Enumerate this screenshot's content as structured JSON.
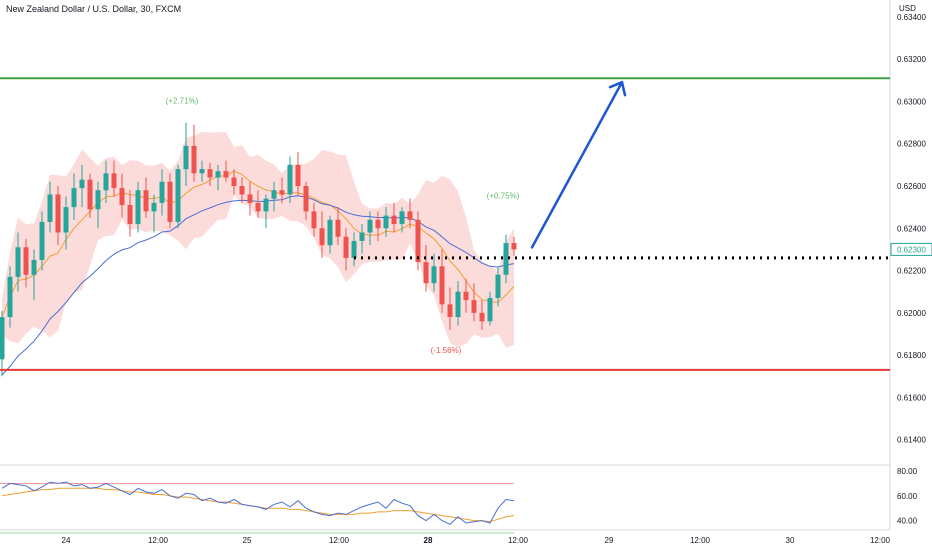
{
  "header": {
    "title": "New Zealand Dollar / U.S. Dollar, 30, FXCM",
    "currency": "USD"
  },
  "chart_data": {
    "type": "candlestick",
    "symbol": "NZDUSD",
    "title": "New Zealand Dollar / U.S. Dollar, 30, FXCM",
    "y_axis": {
      "ticks": [
        "0.63400",
        "0.63200",
        "0.63000",
        "0.62800",
        "0.62600",
        "0.62400",
        "0.62200",
        "0.62000",
        "0.61800",
        "0.61600",
        "0.61400"
      ],
      "ylim": [
        0.6128,
        0.6348
      ]
    },
    "x_axis": {
      "ticks": [
        {
          "label": "24",
          "bold": false
        },
        {
          "label": "12:00",
          "bold": false
        },
        {
          "label": "25",
          "bold": false
        },
        {
          "label": "12:00",
          "bold": false
        },
        {
          "label": "28",
          "bold": true
        },
        {
          "label": "12:00",
          "bold": false
        },
        {
          "label": "29",
          "bold": false
        },
        {
          "label": "12:00",
          "bold": false
        },
        {
          "label": "30",
          "bold": false
        },
        {
          "label": "12:00",
          "bold": false
        }
      ]
    },
    "current_price": {
      "value": 0.623,
      "label": "0.62300",
      "color": "#26a69a"
    },
    "resistance": {
      "value": 0.6311,
      "color": "#43a047"
    },
    "support": {
      "value": 0.6173,
      "color": "#e53935"
    },
    "dotted_level": {
      "value": 0.6226,
      "color": "#000000"
    },
    "annotations": [
      {
        "text": "(+2.71%)",
        "color": "#66bb6a",
        "price": 0.6299
      },
      {
        "text": "(+0.75%)",
        "color": "#66bb6a",
        "price": 0.6254
      },
      {
        "text": "(-1.56%)",
        "color": "#ef5350",
        "price": 0.6181
      }
    ],
    "projection_arrow": {
      "color": "#1e56d6",
      "from": 0.623,
      "to": 0.6311
    },
    "colors": {
      "up": "#26a69a",
      "down": "#ef5350",
      "bands_fill": "#fbd5d5",
      "ma_slow": "#4a6fd6",
      "ma_fast": "#f0a030"
    },
    "candles": [
      [
        0.6178,
        0.6201,
        0.617,
        0.6198
      ],
      [
        0.6198,
        0.6222,
        0.6193,
        0.6217
      ],
      [
        0.6217,
        0.6238,
        0.621,
        0.6231
      ],
      [
        0.6231,
        0.6235,
        0.6212,
        0.6218
      ],
      [
        0.6218,
        0.623,
        0.6206,
        0.6225
      ],
      [
        0.6225,
        0.6248,
        0.622,
        0.6243
      ],
      [
        0.6243,
        0.6262,
        0.6238,
        0.6256
      ],
      [
        0.6256,
        0.626,
        0.6232,
        0.6238
      ],
      [
        0.6238,
        0.6255,
        0.623,
        0.625
      ],
      [
        0.625,
        0.6266,
        0.6244,
        0.6259
      ],
      [
        0.6259,
        0.627,
        0.625,
        0.6263
      ],
      [
        0.6263,
        0.6266,
        0.6245,
        0.6249
      ],
      [
        0.6249,
        0.6262,
        0.624,
        0.6258
      ],
      [
        0.6258,
        0.6272,
        0.6252,
        0.6266
      ],
      [
        0.6266,
        0.6272,
        0.6255,
        0.6259
      ],
      [
        0.6259,
        0.6266,
        0.6245,
        0.6251
      ],
      [
        0.6251,
        0.6258,
        0.6236,
        0.6242
      ],
      [
        0.6242,
        0.6262,
        0.6238,
        0.6258
      ],
      [
        0.6258,
        0.6264,
        0.6245,
        0.6248
      ],
      [
        0.6248,
        0.6256,
        0.6238,
        0.6252
      ],
      [
        0.6252,
        0.6268,
        0.6246,
        0.6262
      ],
      [
        0.6262,
        0.6266,
        0.624,
        0.6243
      ],
      [
        0.6243,
        0.627,
        0.624,
        0.6268
      ],
      [
        0.6268,
        0.629,
        0.626,
        0.6279
      ],
      [
        0.6279,
        0.6289,
        0.6262,
        0.6266
      ],
      [
        0.6266,
        0.6272,
        0.6262,
        0.6268
      ],
      [
        0.6268,
        0.6271,
        0.626,
        0.6264
      ],
      [
        0.6264,
        0.627,
        0.6258,
        0.6267
      ],
      [
        0.6267,
        0.6272,
        0.6262,
        0.6264
      ],
      [
        0.6264,
        0.6268,
        0.6256,
        0.626
      ],
      [
        0.626,
        0.6264,
        0.6252,
        0.6256
      ],
      [
        0.6256,
        0.6262,
        0.6246,
        0.6252
      ],
      [
        0.6252,
        0.6258,
        0.6245,
        0.6248
      ],
      [
        0.6248,
        0.6256,
        0.624,
        0.6254
      ],
      [
        0.6254,
        0.6262,
        0.6248,
        0.6258
      ],
      [
        0.6258,
        0.6264,
        0.6252,
        0.6256
      ],
      [
        0.6256,
        0.6274,
        0.6252,
        0.627
      ],
      [
        0.627,
        0.6276,
        0.6255,
        0.626
      ],
      [
        0.626,
        0.6262,
        0.6244,
        0.6248
      ],
      [
        0.6248,
        0.6252,
        0.6236,
        0.624
      ],
      [
        0.624,
        0.6248,
        0.6226,
        0.6232
      ],
      [
        0.6232,
        0.6246,
        0.6228,
        0.6244
      ],
      [
        0.6244,
        0.625,
        0.6232,
        0.6236
      ],
      [
        0.6236,
        0.624,
        0.622,
        0.6226
      ],
      [
        0.6226,
        0.6238,
        0.6222,
        0.6234
      ],
      [
        0.6234,
        0.6242,
        0.6228,
        0.6238
      ],
      [
        0.6238,
        0.6248,
        0.6232,
        0.6244
      ],
      [
        0.6244,
        0.6248,
        0.6234,
        0.624
      ],
      [
        0.624,
        0.625,
        0.6236,
        0.6246
      ],
      [
        0.6246,
        0.6252,
        0.6238,
        0.6242
      ],
      [
        0.6242,
        0.625,
        0.6238,
        0.6248
      ],
      [
        0.6248,
        0.6254,
        0.624,
        0.6244
      ],
      [
        0.6244,
        0.6248,
        0.622,
        0.6224
      ],
      [
        0.6224,
        0.6232,
        0.621,
        0.6214
      ],
      [
        0.6214,
        0.6228,
        0.621,
        0.6222
      ],
      [
        0.6222,
        0.623,
        0.62,
        0.6204
      ],
      [
        0.6204,
        0.6212,
        0.6192,
        0.6198
      ],
      [
        0.6198,
        0.6215,
        0.6194,
        0.621
      ],
      [
        0.621,
        0.6216,
        0.62,
        0.6206
      ],
      [
        0.6206,
        0.6214,
        0.6196,
        0.62
      ],
      [
        0.62,
        0.6206,
        0.6192,
        0.6196
      ],
      [
        0.6196,
        0.621,
        0.6194,
        0.6207
      ],
      [
        0.6207,
        0.6222,
        0.6203,
        0.6218
      ],
      [
        0.6218,
        0.6237,
        0.6214,
        0.6233
      ],
      [
        0.6233,
        0.6236,
        0.6227,
        0.623
      ]
    ],
    "rsi": {
      "ticks": [
        "80.00",
        "60.00",
        "40.00"
      ],
      "ylim": [
        34,
        84
      ],
      "overbought": 70,
      "oversold": 30,
      "values": [
        66,
        70,
        69,
        68,
        64,
        67,
        71,
        70,
        71,
        68,
        69,
        66,
        67,
        70,
        67,
        64,
        61,
        66,
        63,
        62,
        65,
        60,
        58,
        62,
        61,
        56,
        58,
        55,
        54,
        57,
        53,
        52,
        51,
        49,
        53,
        55,
        51,
        56,
        50,
        47,
        45,
        44,
        46,
        45,
        48,
        51,
        53,
        55,
        50,
        57,
        54,
        52,
        44,
        40,
        45,
        40,
        37,
        43,
        38,
        39,
        40,
        38,
        50,
        57,
        56
      ],
      "signal": [
        60,
        61,
        62,
        63,
        64,
        65,
        65,
        66,
        66,
        66,
        66,
        66,
        66,
        65,
        65,
        64,
        63,
        63,
        62,
        61,
        61,
        60,
        59,
        59,
        58,
        57,
        56,
        55,
        55,
        54,
        53,
        52,
        51,
        50,
        50,
        50,
        49,
        49,
        48,
        47,
        46,
        45,
        45,
        45,
        45,
        46,
        46,
        47,
        47,
        48,
        48,
        48,
        47,
        46,
        45,
        44,
        43,
        42,
        41,
        40,
        40,
        39,
        41,
        43,
        44
      ]
    }
  }
}
